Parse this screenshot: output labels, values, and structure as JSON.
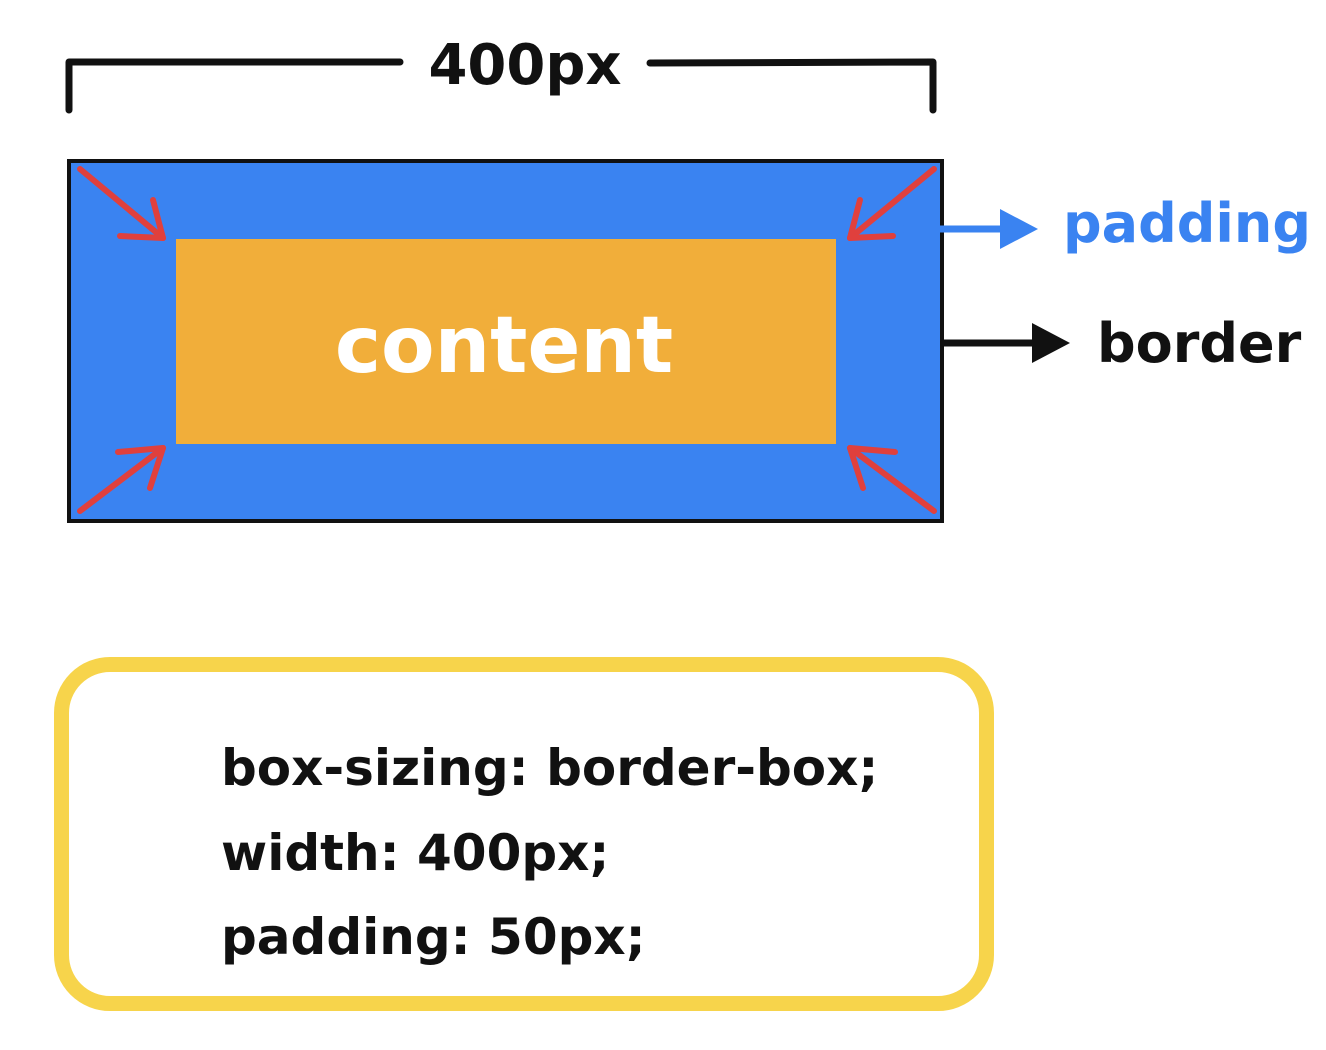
{
  "dimension": {
    "label": "400px"
  },
  "box": {
    "content_label": "content",
    "padding_label": "padding",
    "border_label": "border"
  },
  "colors": {
    "padding_fill": "#3a83f1",
    "content_fill": "#f1ae3a",
    "border": "#111111",
    "padding_label": "#3a83f1",
    "corner_arrows": "#e0403d",
    "code_frame": "#f7d44b"
  },
  "code": {
    "lines": [
      "box-sizing: border-box;",
      "width: 400px;",
      "padding: 50px;"
    ]
  }
}
